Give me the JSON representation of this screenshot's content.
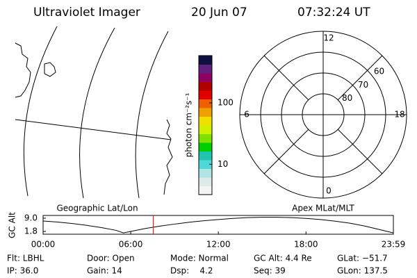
{
  "header": {
    "title": "Ultraviolet Imager",
    "date": "20 Jun 07",
    "time": "07:32:24 UT"
  },
  "chart_data": [
    {
      "type": "colorbar",
      "label": "photon cm⁻²s⁻¹",
      "log": true,
      "ylim": [
        3.2,
        590
      ],
      "yticks": [
        10,
        100
      ],
      "colors": [
        "#f4f4f4",
        "#dceaea",
        "#b0e4e4",
        "#50d8d8",
        "#20c4b0",
        "#00d000",
        "#80e000",
        "#d0f000",
        "#f0e000",
        "#f0a000",
        "#f06000",
        "#e00000",
        "#b00000",
        "#900060",
        "#602080",
        "#101040"
      ]
    },
    {
      "type": "polar",
      "rlim": [
        90,
        50
      ],
      "rticks": [
        80,
        70,
        60
      ],
      "thetaticks": [
        0,
        6,
        12,
        18
      ]
    },
    {
      "type": "line",
      "ylabel": "GC Alt",
      "annotations": [
        "Geographic Lat/Lon",
        "Apex MLat/MLT"
      ],
      "xlim": [
        0,
        23.983
      ],
      "ylim": [
        0.3,
        10.5
      ],
      "xticks": [
        {
          "value": 0,
          "label": "00:00"
        },
        {
          "value": 6,
          "label": "06:00"
        },
        {
          "value": 12,
          "label": "12:00"
        },
        {
          "value": 18,
          "label": "18:00"
        },
        {
          "value": 23.983,
          "label": "23:59"
        }
      ],
      "yticks": [
        {
          "value": 9,
          "label": "9.0"
        },
        {
          "value": 1.8,
          "label": "1.8"
        }
      ],
      "x": [
        0,
        1,
        2,
        3,
        4,
        5,
        5.5,
        6,
        7,
        8,
        9,
        10,
        11,
        12,
        13,
        14,
        15,
        16,
        17,
        18,
        19,
        20,
        21,
        22,
        23,
        23.983
      ],
      "values": [
        7.5,
        6.9,
        6.1,
        5.1,
        3.9,
        2.4,
        1.0,
        1.8,
        3.4,
        4.7,
        5.8,
        6.8,
        7.6,
        8.3,
        8.9,
        9.3,
        9.5,
        9.5,
        9.3,
        8.9,
        8.3,
        7.4,
        6.3,
        4.8,
        2.9,
        1.0
      ],
      "color": "#000000",
      "marker_x": 7.54,
      "marker_color": "#ff0000"
    }
  ],
  "info": [
    [
      "Flt: LBHL",
      "Door: Open",
      "Mode: Normal",
      "GC Alt: 4.4 Re",
      "GLat: −51.7"
    ],
    [
      "IP: 36.0",
      "Gain: 14",
      "Dsp:    4.2",
      "Seq: 39",
      "GLon: 137.5"
    ]
  ]
}
